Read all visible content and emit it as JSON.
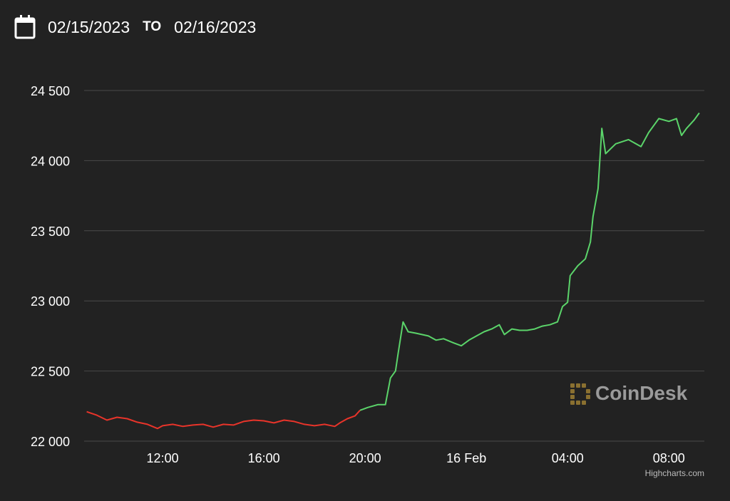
{
  "range": {
    "from": "02/15/2023",
    "to_label": "TO",
    "to": "02/16/2023"
  },
  "watermark": "CoinDesk",
  "credits": "Highcharts.com",
  "colors": {
    "background": "#222222",
    "grid": "#4a4a4a",
    "down": "#e8342a",
    "up": "#5bd46a",
    "watermark": "#9a9a9a",
    "logo": "#8a7030"
  },
  "chart_data": {
    "type": "line",
    "title": "",
    "xlabel": "",
    "ylabel": "",
    "y_ticks": [
      "22 000",
      "22 500",
      "23 000",
      "23 500",
      "24 000",
      "24 500"
    ],
    "y_tick_values": [
      22000,
      22500,
      23000,
      23500,
      24000,
      24500
    ],
    "ylim": [
      22000,
      24500
    ],
    "x_ticks": [
      {
        "label": "12:00",
        "hour": 12
      },
      {
        "label": "16:00",
        "hour": 16
      },
      {
        "label": "20:00",
        "hour": 20
      },
      {
        "label": "16 Feb",
        "hour": 24
      },
      {
        "label": "04:00",
        "hour": 28
      },
      {
        "label": "08:00",
        "hour": 32
      }
    ],
    "xlim_hours": [
      8.9,
      33.4
    ],
    "grid": true,
    "series": [
      {
        "color": "#e8342a",
        "points": [
          [
            9.0,
            22210
          ],
          [
            9.4,
            22185
          ],
          [
            9.8,
            22150
          ],
          [
            10.2,
            22170
          ],
          [
            10.6,
            22160
          ],
          [
            11.0,
            22135
          ],
          [
            11.4,
            22120
          ],
          [
            11.8,
            22090
          ],
          [
            12.0,
            22110
          ],
          [
            12.4,
            22120
          ],
          [
            12.8,
            22105
          ],
          [
            13.2,
            22115
          ],
          [
            13.6,
            22120
          ],
          [
            14.0,
            22100
          ],
          [
            14.4,
            22120
          ],
          [
            14.8,
            22115
          ],
          [
            15.2,
            22140
          ],
          [
            15.6,
            22150
          ],
          [
            16.0,
            22145
          ],
          [
            16.4,
            22130
          ],
          [
            16.8,
            22150
          ],
          [
            17.2,
            22140
          ],
          [
            17.6,
            22120
          ],
          [
            18.0,
            22110
          ],
          [
            18.4,
            22120
          ],
          [
            18.8,
            22105
          ],
          [
            19.0,
            22130
          ],
          [
            19.3,
            22160
          ],
          [
            19.6,
            22180
          ],
          [
            19.8,
            22220
          ]
        ]
      },
      {
        "color": "#5bd46a",
        "points": [
          [
            19.8,
            22220
          ],
          [
            20.1,
            22240
          ],
          [
            20.5,
            22260
          ],
          [
            20.8,
            22260
          ],
          [
            21.0,
            22450
          ],
          [
            21.2,
            22500
          ],
          [
            21.3,
            22620
          ],
          [
            21.5,
            22850
          ],
          [
            21.7,
            22780
          ],
          [
            22.0,
            22770
          ],
          [
            22.5,
            22750
          ],
          [
            22.8,
            22720
          ],
          [
            23.1,
            22730
          ],
          [
            23.5,
            22700
          ],
          [
            23.8,
            22680
          ],
          [
            24.1,
            22720
          ],
          [
            24.4,
            22750
          ],
          [
            24.7,
            22780
          ],
          [
            25.0,
            22800
          ],
          [
            25.3,
            22830
          ],
          [
            25.5,
            22760
          ],
          [
            25.8,
            22800
          ],
          [
            26.1,
            22790
          ],
          [
            26.4,
            22790
          ],
          [
            26.7,
            22800
          ],
          [
            27.0,
            22820
          ],
          [
            27.3,
            22830
          ],
          [
            27.6,
            22850
          ],
          [
            27.8,
            22960
          ],
          [
            28.0,
            22990
          ],
          [
            28.1,
            23180
          ],
          [
            28.4,
            23250
          ],
          [
            28.7,
            23300
          ],
          [
            28.9,
            23420
          ],
          [
            29.0,
            23600
          ],
          [
            29.2,
            23800
          ],
          [
            29.35,
            24230
          ],
          [
            29.5,
            24050
          ],
          [
            29.9,
            24120
          ],
          [
            30.4,
            24150
          ],
          [
            30.9,
            24100
          ],
          [
            31.2,
            24200
          ],
          [
            31.6,
            24300
          ],
          [
            32.0,
            24280
          ],
          [
            32.3,
            24300
          ],
          [
            32.5,
            24180
          ],
          [
            32.7,
            24230
          ],
          [
            33.0,
            24290
          ],
          [
            33.2,
            24340
          ]
        ]
      }
    ]
  }
}
